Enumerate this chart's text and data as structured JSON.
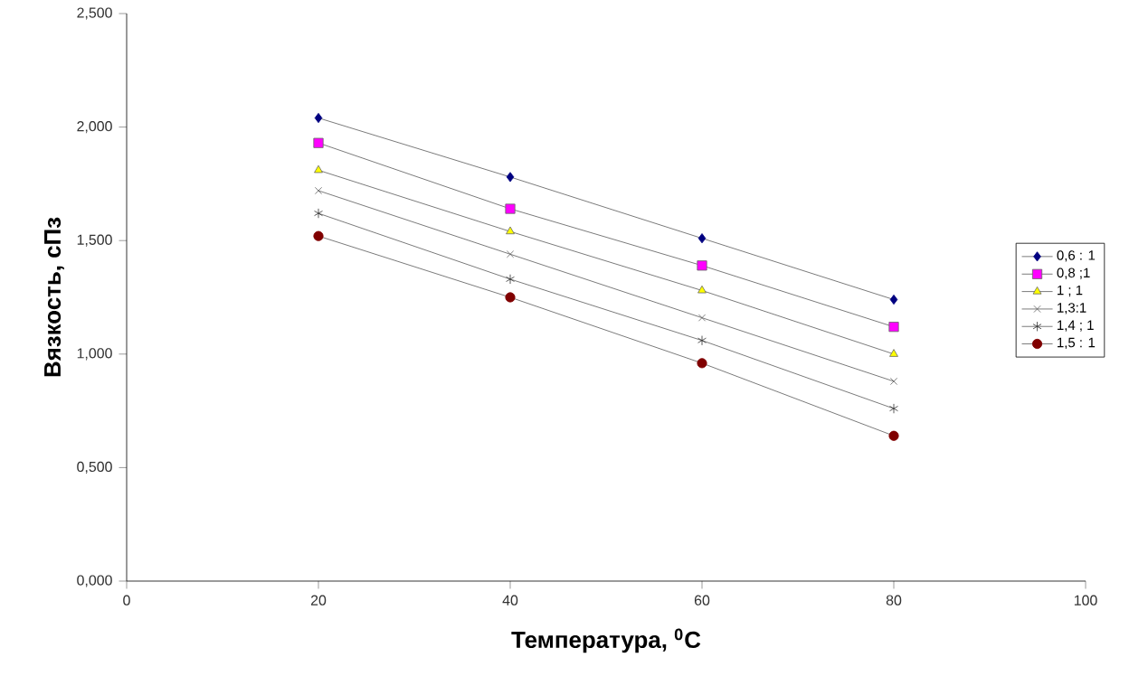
{
  "chart_data": {
    "type": "line",
    "xlabel": "Температура,  $^{0}$C",
    "ylabel": "Вязкость, сПз",
    "x": [
      20,
      40,
      60,
      80
    ],
    "series": [
      {
        "name": "0,6 : 1",
        "color": "#000080",
        "marker": "diamond",
        "values": [
          2.04,
          1.78,
          1.51,
          1.24
        ]
      },
      {
        "name": "0,8 ;1",
        "color": "#ff00ff",
        "marker": "square",
        "values": [
          1.93,
          1.64,
          1.39,
          1.12
        ]
      },
      {
        "name": "1 ; 1",
        "color": "#ffff00",
        "marker": "triangle",
        "values": [
          1.81,
          1.54,
          1.28,
          1.0
        ]
      },
      {
        "name": "1,3:1",
        "color": "#606060",
        "marker": "cross",
        "values": [
          1.72,
          1.44,
          1.16,
          0.88
        ]
      },
      {
        "name": "1,4 ; 1",
        "color": "#303030",
        "marker": "cross",
        "values": [
          1.62,
          1.33,
          1.06,
          0.76
        ]
      },
      {
        "name": "1,5 : 1",
        "color": "#800000",
        "marker": "circle",
        "values": [
          1.52,
          1.25,
          0.96,
          0.64
        ]
      }
    ],
    "xlim": [
      0,
      100
    ],
    "xticks": [
      0,
      20,
      40,
      60,
      80,
      100
    ],
    "ylim": [
      0,
      2.5
    ],
    "yticks": [
      {
        "value": 0,
        "label": "0,000"
      },
      {
        "value": 0.5,
        "label": "0,500"
      },
      {
        "value": 1,
        "label": "1,000"
      },
      {
        "value": 1.5,
        "label": "1,500"
      },
      {
        "value": 2,
        "label": "2,000"
      },
      {
        "value": 2.5,
        "label": "2,500"
      }
    ],
    "grid": false,
    "legend": "right",
    "line_style": "solid"
  }
}
